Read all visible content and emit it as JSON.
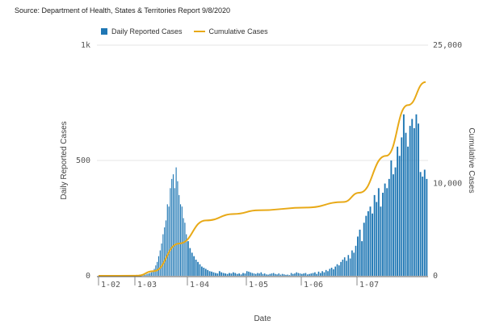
{
  "source_text": "Source: Department of Health, States & Territories Report 9/8/2020",
  "chart_data": {
    "type": "bar+line",
    "legend": [
      {
        "name": "Daily Reported Cases",
        "color": "#1f77b4",
        "kind": "bar"
      },
      {
        "name": "Cumulative Cases",
        "color": "#e8a917",
        "kind": "line"
      }
    ],
    "legend_position": "top-left",
    "xlabel": "Date",
    "ylabel_left": "Daily Reported Cases",
    "ylabel_right": "Cumulative Cases",
    "left_axis": {
      "ylim": [
        0,
        1000
      ],
      "ticks": [
        0,
        500,
        1000
      ],
      "tick_labels": [
        "0",
        "500",
        "1k"
      ]
    },
    "right_axis": {
      "ylim": [
        0,
        25000
      ],
      "ticks": [
        0,
        10000,
        25000
      ],
      "tick_labels": [
        "0",
        "10,000",
        "25,000"
      ]
    },
    "x_ticks": [
      "1-02",
      "1-03",
      "1-04",
      "1-05",
      "1-06",
      "1-07"
    ],
    "daily_cases": [
      {
        "x": "1-03",
        "values": [
          3,
          4,
          2,
          5,
          3,
          4,
          6,
          5,
          8,
          10,
          12,
          15,
          22,
          30,
          45,
          60,
          85,
          110,
          140,
          180,
          210,
          240,
          310,
          300,
          380,
          420,
          440,
          380,
          470,
          410,
          350,
          310,
          300,
          250,
          230,
          180
        ]
      },
      {
        "x": "1-04",
        "values": [
          150,
          120,
          100,
          85,
          70,
          60,
          50,
          40,
          35,
          30,
          25,
          20,
          18,
          15,
          12,
          10,
          20,
          15,
          12,
          10,
          8,
          12,
          10,
          15,
          12,
          8,
          10,
          6,
          12,
          10
        ]
      },
      {
        "x": "1-05",
        "values": [
          20,
          18,
          15,
          12,
          10,
          8,
          12,
          10,
          15,
          8,
          10,
          6,
          5,
          8,
          10,
          12,
          8,
          6,
          10,
          5,
          8,
          6,
          4,
          5,
          3,
          12,
          8,
          10,
          15,
          12,
          10
        ]
      },
      {
        "x": "1-06",
        "values": [
          8,
          10,
          12,
          6,
          8,
          10,
          12,
          15,
          8,
          18,
          12,
          20,
          15,
          25,
          20,
          30,
          35,
          28,
          40,
          50,
          45,
          60,
          70,
          80,
          65,
          90,
          75,
          110,
          100,
          130
        ]
      },
      {
        "x": "1-07",
        "values": [
          170,
          200,
          150,
          230,
          260,
          280,
          300,
          270,
          350,
          320,
          380,
          300,
          360,
          400,
          380,
          420,
          500,
          440,
          470,
          560,
          520,
          600,
          700,
          620,
          560,
          650,
          680,
          640,
          700,
          660,
          450,
          430,
          460,
          420
        ]
      }
    ],
    "cumulative_cases": [
      {
        "x": "1-02",
        "value": 0
      },
      {
        "x": "1-03 (early)",
        "value": 10
      },
      {
        "x": "1-03 (mid)",
        "value": 500
      },
      {
        "x": "1-03 (late)",
        "value": 3500
      },
      {
        "x": "1-04",
        "value": 6000
      },
      {
        "x": "1-04 (mid)",
        "value": 6700
      },
      {
        "x": "1-05",
        "value": 7100
      },
      {
        "x": "1-06",
        "value": 7400
      },
      {
        "x": "1-06 (late)",
        "value": 8000
      },
      {
        "x": "1-07",
        "value": 9000
      },
      {
        "x": "1-07 (mid)",
        "value": 13000
      },
      {
        "x": "1-07 (late)",
        "value": 18500
      },
      {
        "x": "1-08 (early)",
        "value": 21000
      }
    ]
  }
}
